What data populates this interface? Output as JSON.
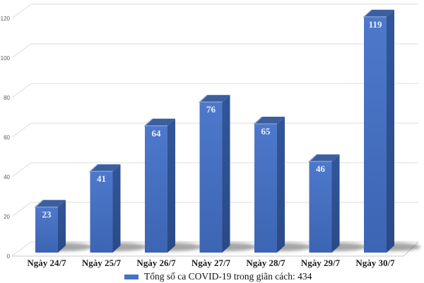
{
  "chart_data": {
    "type": "bar",
    "variant": "3d-column",
    "title": "",
    "xlabel": "",
    "ylabel": "",
    "categories": [
      "Ngày 24/7",
      "Ngày 25/7",
      "Ngày 26/7",
      "Ngày 27/7",
      "Ngày 28/7",
      "Ngày 29/7",
      "Ngày 30/7"
    ],
    "series": [
      {
        "name": "Tổng số ca COVID-19 trong giãn cách: 434",
        "values": [
          23,
          41,
          64,
          76,
          65,
          46,
          119
        ]
      }
    ],
    "value_labels_shown": true,
    "y_axis": {
      "min": 0,
      "max": 120,
      "ticks": [
        0,
        20,
        40,
        60,
        80,
        100,
        120
      ]
    },
    "grid": true,
    "legend": {
      "position": "bottom",
      "entries": [
        {
          "label": "Tổng số ca COVID-19 trong giãn cách: 434",
          "color": "#4472c4"
        }
      ]
    },
    "colors": {
      "background": "#ffffff",
      "bar_front_top": "#4e78cb",
      "bar_front_bottom": "#3c65b3",
      "bar_side_light": "#315699",
      "bar_side_dark": "#2a4a86",
      "bar_top": "#3b5e9f",
      "bar_top_highlight": "#8aa0cf",
      "gridline": "#dcdcdc",
      "floor_edge": "#c9c9c9",
      "shadow": "#4d4d4d",
      "y_tick_label": "#595959",
      "category_label": "#1b1b1b",
      "value_label": "#edf2fb",
      "legend_swatch": "#4472c4"
    }
  }
}
